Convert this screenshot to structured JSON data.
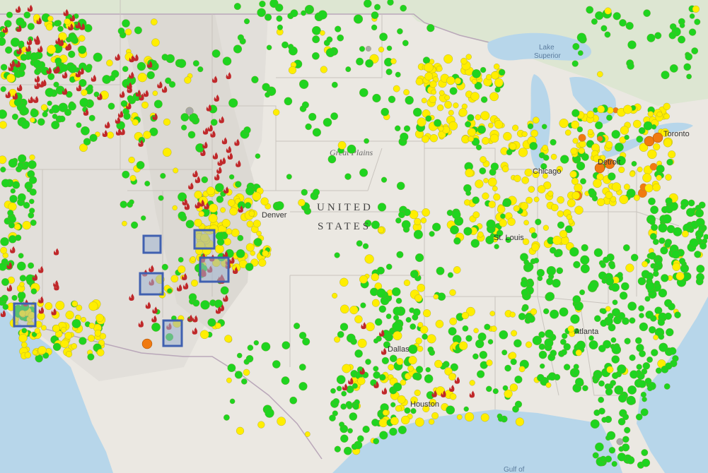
{
  "map": {
    "labels": {
      "country_line1": "UNITED",
      "country_line2": "STATES",
      "region": "Great Plains",
      "lake": "Lake",
      "lake_line2": "Superior",
      "gulf": "Gulf of",
      "cities": {
        "denver": "Denver",
        "st_louis": "St. Louis",
        "chicago": "Chicago",
        "detroit": "Detroit",
        "toronto": "Toronto",
        "dallas": "Dallas",
        "houston": "Houston",
        "atlanta": "Atlanta"
      }
    },
    "colors": {
      "land": "#e9e6e1",
      "water": "#b7d6ea",
      "canada": "#dfe8d6",
      "green_marker": "#1fd41f",
      "yellow_marker": "#ffee00",
      "orange_marker": "#f07a10",
      "gray_marker": "#a8a8a8",
      "fire_icon": "#c0282a",
      "drought_box": "#4060b0"
    },
    "marker_categories": [
      "green",
      "yellow",
      "orange",
      "gray"
    ],
    "icons": [
      "fire-icon",
      "drought-box-icon"
    ]
  }
}
